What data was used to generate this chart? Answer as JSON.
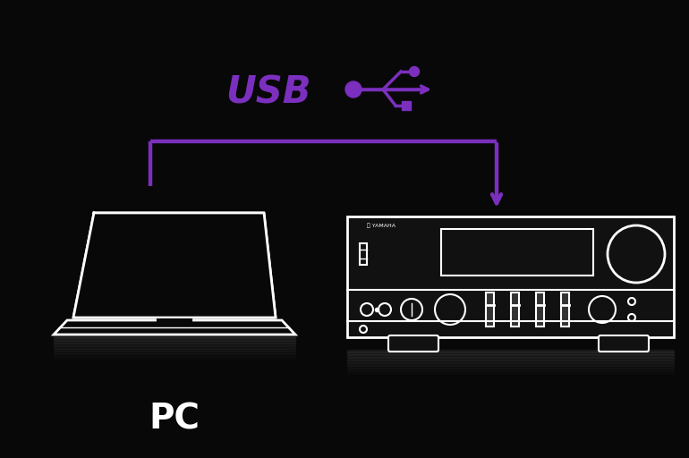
{
  "bg_color": "#080808",
  "purple": "#7B2FBE",
  "white": "#ffffff",
  "pc_label": "PC",
  "usb_label": "USB",
  "usb_color": "#7B2FBE",
  "arrow_color": "#7B2FBE",
  "fig_w": 7.7,
  "fig_h": 5.12,
  "dpi": 100
}
